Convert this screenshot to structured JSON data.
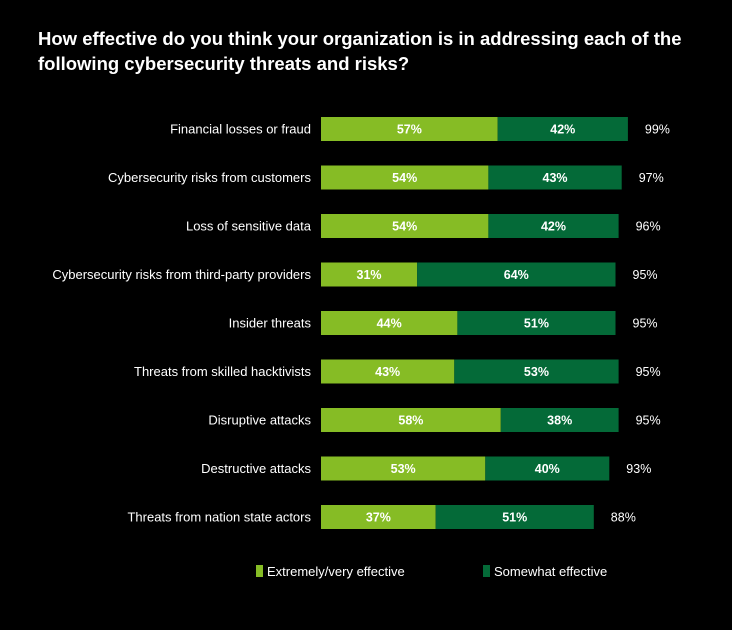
{
  "chart_data": {
    "type": "bar",
    "orientation": "horizontal",
    "stacked": true,
    "title": "How effective do you think your organization is in addressing each of the following cybersecurity threats and risks?",
    "categories": [
      "Financial losses or fraud",
      "Cybersecurity risks from customers",
      "Loss of sensitive data",
      "Cybersecurity risks from third-party providers",
      "Insider threats",
      "Threats from skilled hacktivists",
      "Disruptive attacks",
      "Destructive attacks",
      "Threats from nation state actors"
    ],
    "series": [
      {
        "name": "Extremely/very effective",
        "color": "#86bc25",
        "values": [
          57,
          54,
          54,
          31,
          44,
          43,
          58,
          53,
          37
        ]
      },
      {
        "name": "Somewhat effective",
        "color": "#046a38",
        "values": [
          42,
          43,
          42,
          64,
          51,
          53,
          38,
          40,
          51
        ]
      }
    ],
    "totals": [
      99,
      97,
      96,
      95,
      95,
      95,
      95,
      93,
      88
    ],
    "value_suffix": "%",
    "legend_position": "bottom",
    "grid": false
  }
}
